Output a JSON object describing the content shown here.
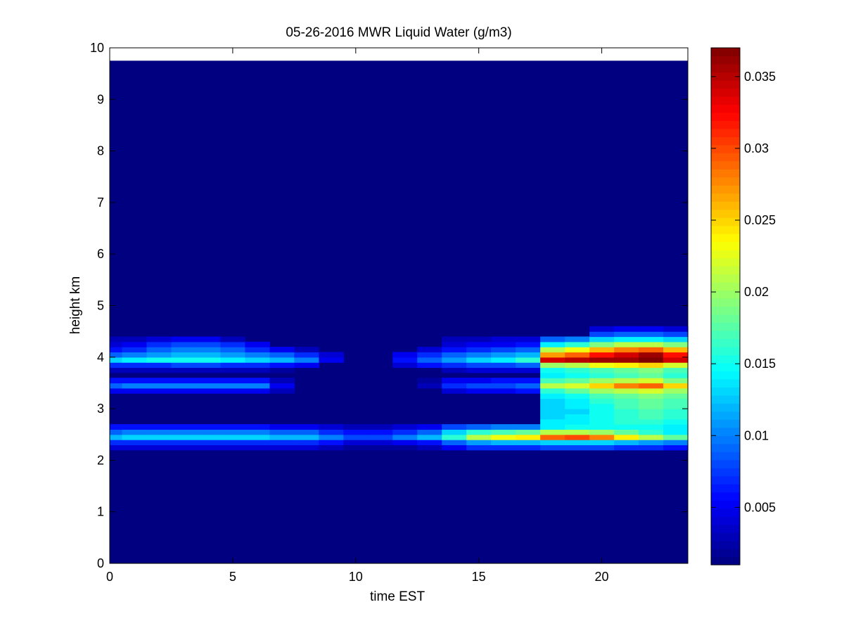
{
  "chart_data": {
    "type": "heatmap",
    "title": "05-26-2016 MWR Liquid Water (g/m3)",
    "xlabel": "time EST",
    "ylabel": "height km",
    "xlim": [
      0,
      23.5
    ],
    "ylim": [
      0,
      10
    ],
    "x_ticks": [
      "0",
      "5",
      "10",
      "15",
      "20"
    ],
    "y_ticks": [
      "0",
      "1",
      "2",
      "3",
      "4",
      "5",
      "6",
      "7",
      "8",
      "9",
      "10"
    ],
    "data_extent": {
      "x": [
        0,
        23.5
      ],
      "y": [
        0,
        9.75
      ]
    },
    "colormap": "jet",
    "colorbar": {
      "range": [
        0.001,
        0.037
      ],
      "ticks": [
        "0.005",
        "0.01",
        "0.015",
        "0.02",
        "0.025",
        "0.03",
        "0.035"
      ]
    },
    "background_value": 0.001,
    "grid": false,
    "x_centers": [
      0,
      1,
      2,
      3,
      4,
      5,
      6,
      7,
      8,
      9,
      10,
      11,
      12,
      13,
      14,
      15,
      16,
      17,
      18,
      19,
      20,
      21,
      22,
      23
    ],
    "levels": [
      {
        "height": 2.25,
        "values": [
          0.004,
          0.004,
          0.004,
          0.004,
          0.004,
          0.004,
          0.004,
          0.004,
          0.004,
          0.003,
          0.002,
          0.002,
          0.002,
          0.003,
          0.005,
          0.007,
          0.007,
          0.007,
          0.008,
          0.008,
          0.008,
          0.007,
          0.007,
          0.006
        ]
      },
      {
        "height": 2.35,
        "values": [
          0.007,
          0.007,
          0.007,
          0.007,
          0.007,
          0.007,
          0.007,
          0.007,
          0.007,
          0.006,
          0.004,
          0.004,
          0.005,
          0.006,
          0.009,
          0.011,
          0.012,
          0.012,
          0.013,
          0.013,
          0.013,
          0.012,
          0.011,
          0.01
        ]
      },
      {
        "height": 2.45,
        "values": [
          0.012,
          0.013,
          0.013,
          0.013,
          0.013,
          0.013,
          0.013,
          0.012,
          0.012,
          0.01,
          0.008,
          0.008,
          0.01,
          0.012,
          0.016,
          0.021,
          0.023,
          0.024,
          0.029,
          0.03,
          0.028,
          0.024,
          0.021,
          0.018
        ]
      },
      {
        "height": 2.55,
        "values": [
          0.009,
          0.01,
          0.01,
          0.01,
          0.01,
          0.01,
          0.01,
          0.009,
          0.009,
          0.007,
          0.006,
          0.006,
          0.007,
          0.009,
          0.013,
          0.016,
          0.017,
          0.018,
          0.021,
          0.021,
          0.02,
          0.018,
          0.016,
          0.014
        ]
      },
      {
        "height": 2.65,
        "values": [
          0.006,
          0.006,
          0.006,
          0.006,
          0.006,
          0.006,
          0.006,
          0.005,
          0.005,
          0.004,
          0.003,
          0.003,
          0.004,
          0.005,
          0.008,
          0.009,
          0.01,
          0.01,
          0.014,
          0.015,
          0.015,
          0.015,
          0.015,
          0.014
        ]
      },
      {
        "height": 2.75,
        "values": [
          0,
          0,
          0,
          0,
          0,
          0,
          0,
          0,
          0,
          0,
          0,
          0,
          0,
          0,
          0,
          0,
          0,
          0,
          0.014,
          0.014,
          0.015,
          0.016,
          0.016,
          0.015
        ]
      },
      {
        "height": 2.85,
        "values": [
          0,
          0,
          0,
          0,
          0,
          0,
          0,
          0,
          0,
          0,
          0,
          0,
          0,
          0,
          0,
          0,
          0,
          0,
          0.013,
          0.014,
          0.015,
          0.016,
          0.017,
          0.016
        ]
      },
      {
        "height": 2.95,
        "values": [
          0,
          0,
          0,
          0,
          0,
          0,
          0,
          0,
          0,
          0,
          0,
          0,
          0,
          0,
          0,
          0,
          0,
          0,
          0.013,
          0.013,
          0.015,
          0.016,
          0.017,
          0.016
        ]
      },
      {
        "height": 3.05,
        "values": [
          0,
          0,
          0,
          0,
          0,
          0,
          0,
          0,
          0,
          0,
          0,
          0,
          0,
          0,
          0,
          0,
          0,
          0,
          0.013,
          0.014,
          0.015,
          0.017,
          0.018,
          0.017
        ]
      },
      {
        "height": 3.15,
        "values": [
          0,
          0,
          0,
          0,
          0,
          0,
          0,
          0,
          0,
          0,
          0,
          0,
          0,
          0,
          0,
          0,
          0,
          0,
          0.013,
          0.014,
          0.016,
          0.017,
          0.018,
          0.017
        ]
      },
      {
        "height": 3.25,
        "values": [
          0,
          0,
          0,
          0,
          0,
          0,
          0,
          0,
          0,
          0,
          0,
          0,
          0,
          0,
          0,
          0,
          0,
          0,
          0.014,
          0.015,
          0.017,
          0.018,
          0.019,
          0.018
        ]
      },
      {
        "height": 3.35,
        "values": [
          0.005,
          0.005,
          0.005,
          0.005,
          0.005,
          0.005,
          0.005,
          0.003,
          0,
          0,
          0,
          0,
          0,
          0,
          0.004,
          0.005,
          0.005,
          0.006,
          0.016,
          0.018,
          0.02,
          0.021,
          0.022,
          0.02
        ]
      },
      {
        "height": 3.45,
        "values": [
          0.009,
          0.01,
          0.01,
          0.01,
          0.01,
          0.01,
          0.01,
          0.005,
          0,
          0,
          0,
          0,
          0,
          0.003,
          0.007,
          0.008,
          0.008,
          0.009,
          0.021,
          0.022,
          0.025,
          0.028,
          0.029,
          0.025
        ]
      },
      {
        "height": 3.55,
        "values": [
          0.006,
          0.006,
          0.006,
          0.006,
          0.006,
          0.006,
          0.006,
          0.003,
          0,
          0,
          0,
          0,
          0,
          0.002,
          0.005,
          0.005,
          0.006,
          0.006,
          0.017,
          0.018,
          0.02,
          0.021,
          0.022,
          0.019
        ]
      },
      {
        "height": 3.65,
        "values": [
          0,
          0,
          0,
          0,
          0,
          0,
          0,
          0,
          0,
          0,
          0,
          0,
          0,
          0,
          0,
          0,
          0,
          0,
          0.014,
          0.015,
          0.016,
          0.017,
          0.018,
          0.016
        ]
      },
      {
        "height": 3.75,
        "values": [
          0.003,
          0.003,
          0.003,
          0.003,
          0.003,
          0.003,
          0.003,
          0.002,
          0,
          0,
          0,
          0,
          0,
          0,
          0.003,
          0.004,
          0.004,
          0.004,
          0.015,
          0.016,
          0.017,
          0.018,
          0.019,
          0.017
        ]
      },
      {
        "height": 3.85,
        "values": [
          0.007,
          0.007,
          0.007,
          0.008,
          0.008,
          0.007,
          0.007,
          0.006,
          0.005,
          0,
          0,
          0,
          0.004,
          0.006,
          0.007,
          0.008,
          0.008,
          0.009,
          0.02,
          0.021,
          0.023,
          0.024,
          0.025,
          0.022
        ]
      },
      {
        "height": 3.95,
        "values": [
          0.013,
          0.014,
          0.015,
          0.015,
          0.015,
          0.014,
          0.013,
          0.012,
          0.01,
          0.005,
          0,
          0,
          0.006,
          0.009,
          0.011,
          0.013,
          0.014,
          0.016,
          0.034,
          0.035,
          0.036,
          0.036,
          0.037,
          0.034
        ]
      },
      {
        "height": 4.05,
        "values": [
          0.009,
          0.01,
          0.011,
          0.012,
          0.012,
          0.011,
          0.01,
          0.009,
          0.007,
          0.004,
          0,
          0,
          0.005,
          0.007,
          0.009,
          0.01,
          0.011,
          0.012,
          0.027,
          0.029,
          0.032,
          0.034,
          0.036,
          0.032
        ]
      },
      {
        "height": 4.15,
        "values": [
          0.006,
          0.007,
          0.009,
          0.01,
          0.01,
          0.009,
          0.007,
          0.005,
          0.003,
          0,
          0,
          0,
          0,
          0.004,
          0.006,
          0.007,
          0.008,
          0.009,
          0.021,
          0.023,
          0.026,
          0.028,
          0.029,
          0.026
        ]
      },
      {
        "height": 4.25,
        "values": [
          0.004,
          0.005,
          0.007,
          0.008,
          0.008,
          0.007,
          0.005,
          0,
          0,
          0,
          0,
          0,
          0,
          0,
          0.004,
          0.005,
          0.005,
          0.006,
          0.014,
          0.016,
          0.019,
          0.021,
          0.021,
          0.019
        ]
      },
      {
        "height": 4.35,
        "values": [
          0.003,
          0.003,
          0.004,
          0.005,
          0.005,
          0.003,
          0,
          0,
          0,
          0,
          0,
          0,
          0,
          0,
          0.003,
          0.003,
          0.004,
          0.004,
          0.009,
          0.01,
          0.013,
          0.014,
          0.014,
          0.013
        ]
      },
      {
        "height": 4.45,
        "values": [
          0,
          0,
          0,
          0,
          0,
          0,
          0,
          0,
          0,
          0,
          0,
          0,
          0,
          0,
          0,
          0,
          0,
          0,
          0,
          0,
          0.008,
          0.009,
          0.009,
          0.008
        ]
      },
      {
        "height": 4.55,
        "values": [
          0,
          0,
          0,
          0,
          0,
          0,
          0,
          0,
          0,
          0,
          0,
          0,
          0,
          0,
          0,
          0,
          0,
          0,
          0,
          0,
          0.004,
          0.005,
          0.005,
          0.004
        ]
      }
    ]
  }
}
